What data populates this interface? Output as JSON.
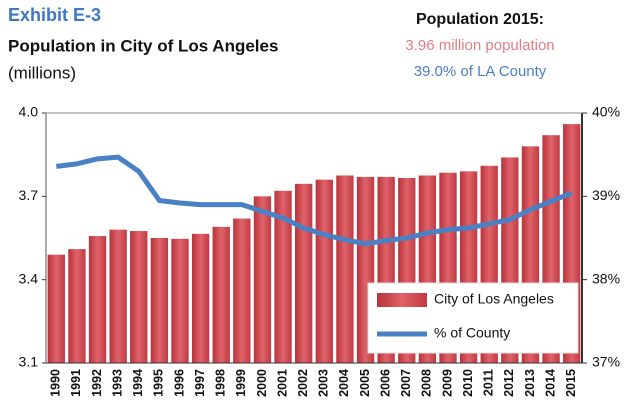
{
  "chart_data": {
    "type": "bar",
    "title": "Exhibit E-3",
    "subtitle": "Population in City of Los Angeles",
    "y_label": "(millions)",
    "annotations": [
      "Population 2015:",
      "3.96 million population",
      "39.0% of LA County"
    ],
    "categories": [
      "1990",
      "1991",
      "1992",
      "1993",
      "1994",
      "1995",
      "1996",
      "1997",
      "1998",
      "1999",
      "2000",
      "2001",
      "2002",
      "2003",
      "2004",
      "2005",
      "2006",
      "2007",
      "2008",
      "2009",
      "2010",
      "2011",
      "2012",
      "2013",
      "2014",
      "2015"
    ],
    "series": [
      {
        "name": "City of Los Angeles",
        "type": "bar",
        "color": "#d9545c",
        "values": [
          3.49,
          3.51,
          3.557,
          3.58,
          3.575,
          3.55,
          3.547,
          3.565,
          3.59,
          3.62,
          3.7,
          3.72,
          3.745,
          3.76,
          3.775,
          3.77,
          3.77,
          3.766,
          3.775,
          3.785,
          3.79,
          3.81,
          3.84,
          3.88,
          3.92,
          3.96
        ]
      },
      {
        "name": "% of County",
        "type": "line",
        "axis": "y2",
        "color": "#4a80c4",
        "values": [
          39.36,
          39.39,
          39.45,
          39.47,
          39.3,
          38.95,
          38.92,
          38.9,
          38.9,
          38.9,
          38.82,
          38.74,
          38.62,
          38.54,
          38.48,
          38.43,
          38.47,
          38.5,
          38.56,
          38.6,
          38.62,
          38.67,
          38.72,
          38.84,
          38.94,
          39.04
        ]
      }
    ],
    "ylim": [
      3.1,
      4.0
    ],
    "yticks": [
      3.1,
      3.4,
      3.7,
      {
        "value": 4,
        "label": "4.0"
      }
    ],
    "y2lim": [
      37,
      40
    ],
    "y2ticks": [
      {
        "value": 37,
        "label": "37%"
      },
      {
        "value": 38,
        "label": "38%"
      },
      {
        "value": 39,
        "label": "39%"
      },
      {
        "value": 40,
        "label": "40%"
      }
    ],
    "legend": "lower right"
  }
}
